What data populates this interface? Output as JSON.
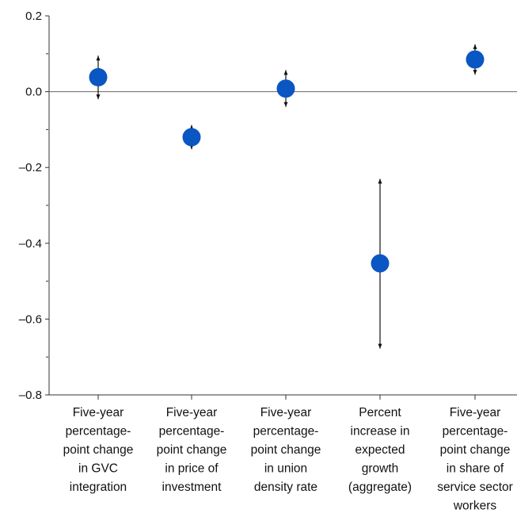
{
  "chart_data": {
    "type": "scatter",
    "title": "",
    "xlabel": "",
    "ylabel": "",
    "ylim": [
      -0.8,
      0.2
    ],
    "y_ticks": [
      {
        "value": 0.2,
        "label": "0.2"
      },
      {
        "value": 0.0,
        "label": "0.0"
      },
      {
        "value": -0.2,
        "label": "–0.2"
      },
      {
        "value": -0.4,
        "label": "–0.4"
      },
      {
        "value": -0.6,
        "label": "–0.6"
      },
      {
        "value": -0.8,
        "label": "–0.8"
      }
    ],
    "y_minor_ticks": [
      0.1,
      -0.1,
      -0.3,
      -0.5,
      -0.7
    ],
    "categories": [
      [
        "Five-year",
        "percentage-",
        "point change",
        "in GVC",
        "integration"
      ],
      [
        "Five-year",
        "percentage-",
        "point change",
        "in price of",
        "investment"
      ],
      [
        "Five-year",
        "percentage-",
        "point change",
        "in union",
        "density rate"
      ],
      [
        "Percent",
        "increase in",
        "expected",
        "growth",
        "(aggregate)"
      ],
      [
        "Five-year",
        "percentage-",
        "point change",
        "in share of",
        "service sector",
        "workers"
      ]
    ],
    "points": [
      {
        "estimate": 0.038,
        "ci_low": -0.02,
        "ci_high": 0.095
      },
      {
        "estimate": -0.12,
        "ci_low": -0.152,
        "ci_high": -0.088
      },
      {
        "estimate": 0.008,
        "ci_low": -0.04,
        "ci_high": 0.057
      },
      {
        "estimate": -0.453,
        "ci_low": -0.678,
        "ci_high": -0.23
      },
      {
        "estimate": 0.085,
        "ci_low": 0.045,
        "ci_high": 0.125
      }
    ],
    "zero_line": 0.0,
    "grid": false,
    "colors": {
      "marker": "#0a56c2",
      "errorbar": "#111111",
      "axis": "#333333",
      "zero_line": "#666666"
    }
  }
}
